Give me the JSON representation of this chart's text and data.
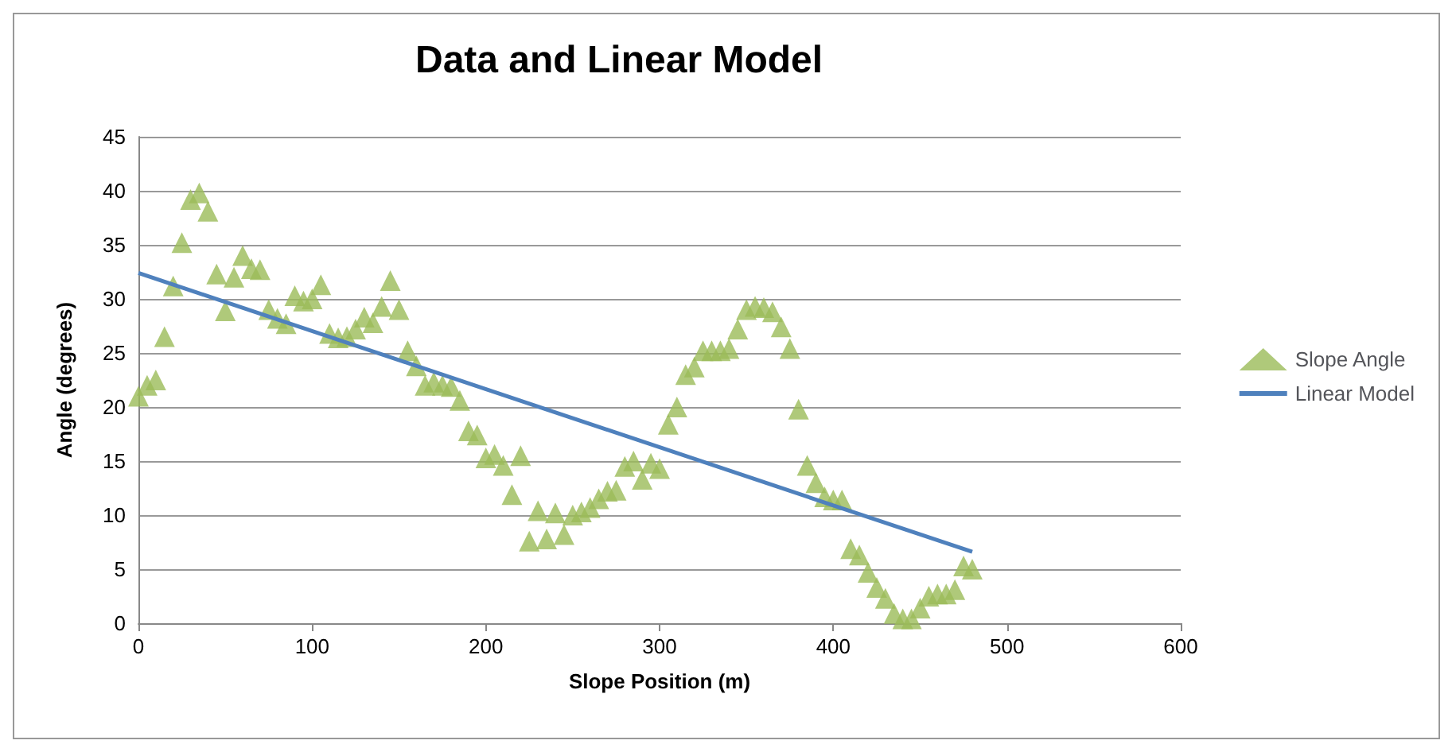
{
  "chart_data": {
    "type": "scatter",
    "title": "Data and Linear Model",
    "xlabel": "Slope Position (m)",
    "ylabel": "Angle (degrees)",
    "xlim": [
      0,
      600
    ],
    "xticks": [
      0,
      100,
      200,
      300,
      400,
      500,
      600
    ],
    "ylim": [
      0,
      45
    ],
    "yticks": [
      0,
      5,
      10,
      15,
      20,
      25,
      30,
      35,
      40,
      45
    ],
    "grid": "y",
    "legend": "right",
    "marker": "triangle",
    "series": [
      {
        "name": "Slope Angle",
        "color": "#9bbb59",
        "x": [
          0,
          5,
          10,
          15,
          20,
          25,
          30,
          35,
          40,
          45,
          50,
          55,
          60,
          65,
          70,
          75,
          80,
          85,
          90,
          95,
          100,
          105,
          110,
          115,
          120,
          125,
          130,
          135,
          140,
          145,
          150,
          155,
          160,
          165,
          170,
          175,
          180,
          185,
          190,
          195,
          200,
          205,
          210,
          215,
          220,
          225,
          230,
          235,
          240,
          245,
          250,
          255,
          260,
          265,
          270,
          275,
          280,
          285,
          290,
          295,
          300,
          305,
          310,
          315,
          320,
          325,
          330,
          335,
          340,
          345,
          350,
          355,
          360,
          365,
          370,
          375,
          380,
          385,
          390,
          395,
          400,
          405,
          410,
          415,
          420,
          425,
          430,
          435,
          440,
          445,
          450,
          455,
          460,
          465,
          470,
          475,
          480
        ],
        "values": [
          21,
          22,
          22.5,
          26.5,
          31.2,
          35.2,
          39.2,
          39.8,
          38.1,
          32.3,
          28.9,
          32,
          34,
          32.8,
          32.7,
          29,
          28.2,
          27.7,
          30.3,
          29.8,
          30,
          31.3,
          26.8,
          26.4,
          26.5,
          27.2,
          28.3,
          27.8,
          29.3,
          31.7,
          29,
          25.2,
          23.8,
          22,
          22.3,
          22,
          21.9,
          20.6,
          17.8,
          17.4,
          15.3,
          15.6,
          14.6,
          11.9,
          15.5,
          7.6,
          10.4,
          7.8,
          10.2,
          8.2,
          10,
          10.3,
          10.7,
          11.5,
          12.2,
          12.3,
          14.5,
          15,
          13.3,
          14.8,
          14.3,
          18.4,
          20,
          23,
          23.7,
          25.2,
          25.2,
          25.2,
          25.4,
          27.2,
          29,
          29.3,
          29.2,
          28.8,
          27.4,
          25.4,
          19.8,
          14.6,
          13,
          11.7,
          11.4,
          11.4,
          6.9,
          6.3,
          4.7,
          3.3,
          2.3,
          0.9,
          0.4,
          0.4,
          1.4,
          2.5,
          2.7,
          2.7,
          3.1,
          5.3,
          5
        ]
      },
      {
        "name": "Linear Model",
        "type": "line",
        "color": "#4f81bd",
        "marker": "none",
        "x": [
          0,
          480
        ],
        "values": [
          32.4,
          6.6
        ]
      }
    ]
  }
}
